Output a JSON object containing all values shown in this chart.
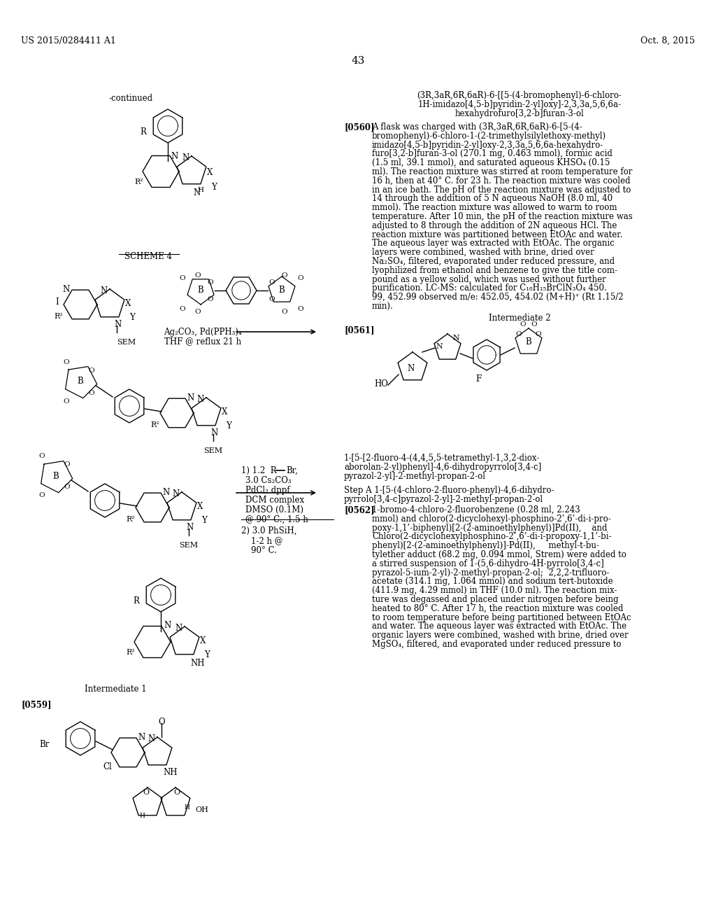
{
  "background_color": "#ffffff",
  "header_left": "US 2015/0284411 A1",
  "header_right": "Oct. 8, 2015",
  "page_number": "43",
  "continued_label": "-continued",
  "scheme_label": "SCHEME 4",
  "reagent1": "Ag₂CO₃, Pd(PPH₃)₄",
  "reagent2": "THF @ reflux 21 h",
  "cond1a": "1) 1.2  R",
  "cond1b": "Br,",
  "cond2": "3.0 Cs₂CO₃",
  "cond3": "PdCl₂ dppf",
  "cond4": "DCM complex",
  "cond5": "DMSO (0.1M)",
  "cond6": "@ 90° C., 1.5 h",
  "cond7": "2) 3.0 PhSiH,",
  "cond8": "1-2 h @",
  "cond9": "90° C.",
  "intermediate1_label": "Intermediate 1",
  "paragraph_0559_label": "[0559]",
  "intermediate2_label": "Intermediate 2",
  "paragraph_0561_label": "[0561]",
  "compound_name_lines": [
    "(3R,3aR,6R,6aR)-6-[[5-(4-bromophenyl)-6-chloro-",
    "1H-imidazo[4,5-b]pyridin-2-yl]oxy]-2,3,3a,5,6,6a-",
    "hexahydrofuro[3,2-b]furan-3-ol"
  ],
  "paragraph_0560_label": "[0560]",
  "text_0560_lines": [
    "A flask was charged with (3R,3aR,6R,6aR)-6-[5-(4-",
    "bromophenyl)-6-chloro-1-(2-trimethylsilylethoxy-methyl)",
    "imidazo[4,5-b]pyridin-2-yl]oxy-2,3,3a,5,6,6a-hexahydro-",
    "furo[3,2-b]furan-3-ol (270.1 mg, 0.463 mmol), formic acid",
    "(1.5 ml, 39.1 mmol), and saturated aqueous KHSO₄ (0.15",
    "ml). The reaction mixture was stirred at room temperature for",
    "16 h, then at 40° C. for 23 h. The reaction mixture was cooled",
    "in an ice bath. The pH of the reaction mixture was adjusted to",
    "14 through the addition of 5 N aqueous NaOH (8.0 ml, 40",
    "mmol). The reaction mixture was allowed to warm to room",
    "temperature. After 10 min, the pH of the reaction mixture was",
    "adjusted to 8 through the addition of 2N aqueous HCl. The",
    "reaction mixture was partitioned between EtOAc and water.",
    "The aqueous layer was extracted with EtOAc. The organic",
    "layers were combined, washed with brine, dried over",
    "Na₂SO₄, filtered, evaporated under reduced pressure, and",
    "lyophilized from ethanol and benzene to give the title com-",
    "pound as a yellow solid, which was used without further",
    "purification. LC-MS: calculated for C₁₈H₁₅BrClN₃O₄ 450.",
    "99, 452.99 observed m/e: 452.05, 454.02 (M+H)⁺ (Rt 1.15/2",
    "min)."
  ],
  "int2_name_lines": [
    "1-[5-[2-fluoro-4-(4,4,5,5-tetramethyl-1,3,2-diox-",
    "aborolan-2-yl)phenyl]-4,6-dihydropyrrolo[3,4-c]",
    "pyrazol-2-yl]-2-methyl-propan-2-ol"
  ],
  "step_a_lines": [
    "Step A 1-[5-(4-chloro-2-fluoro-phenyl)-4,6-dihydro-",
    "pyrrolo[3,4-c]pyrazol-2-yl]-2-methyl-propan-2-ol"
  ],
  "paragraph_0562_label": "[0562]",
  "text_0562_lines": [
    "1-bromo-4-chloro-2-fluorobenzene (0.28 ml, 2.243",
    "mmol) and chloro(2-dicyclohexyl-phosphino-2’,6’-di-i-pro-",
    "poxy-1,1’-biphenyl)[2-(2-aminoethylphenyl)]Pd(II),    and",
    "Chloro(2-dicyclohexylphosphino-2’,6’-di-i-propoxy-1,1’-bi-",
    "phenyl)[2-(2-aminoethylphenyl)]-Pd(II),     methyl-t-bu-",
    "tylether adduct (68.2 mg, 0.094 mmol, Strem) were added to",
    "a stirred suspension of 1-(5,6-dihydro-4H-pyrrolo[3,4-c]",
    "pyrazol-5-ium-2-yl)-2-methyl-propan-2-ol;  2,2,2-trifluoro-",
    "acetate (314.1 mg, 1.064 mmol) and sodium tert-butoxide",
    "(411.9 mg, 4.29 mmol) in THF (10.0 ml). The reaction mix-",
    "ture was degassed and placed under nitrogen before being",
    "heated to 80° C. After 17 h, the reaction mixture was cooled",
    "to room temperature before being partitioned between EtOAc",
    "and water. The aqueous layer was extracted with EtOAc. The",
    "organic layers were combined, washed with brine, dried over",
    "MgSO₄, filtered, and evaporated under reduced pressure to"
  ]
}
